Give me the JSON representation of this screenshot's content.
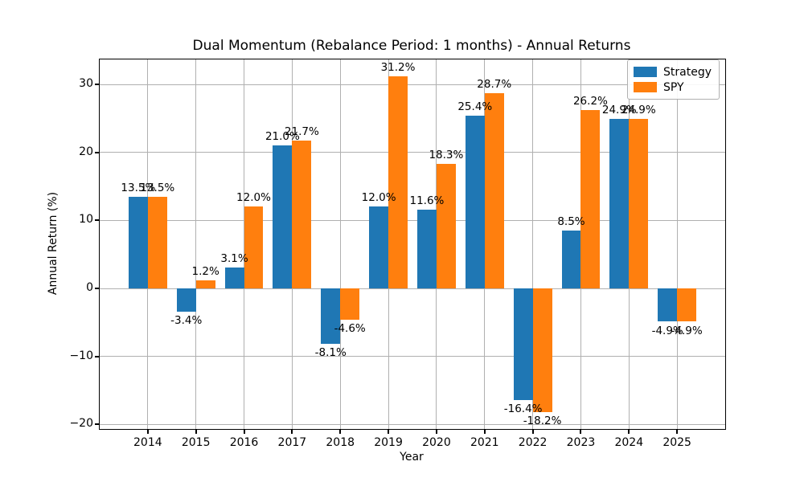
{
  "chart_data": {
    "type": "bar",
    "title": "Dual Momentum (Rebalance Period: 1 months) - Annual Returns",
    "xlabel": "Year",
    "ylabel": "Annual Return (%)",
    "categories": [
      "2014",
      "2015",
      "2016",
      "2017",
      "2018",
      "2019",
      "2020",
      "2021",
      "2022",
      "2023",
      "2024",
      "2025"
    ],
    "series": [
      {
        "name": "Strategy",
        "color": "#1f77b4",
        "values": [
          13.5,
          -3.4,
          3.1,
          21.0,
          -8.1,
          12.0,
          11.6,
          25.4,
          -16.4,
          8.5,
          24.9,
          -4.9
        ]
      },
      {
        "name": "SPY",
        "color": "#ff7f0e",
        "values": [
          13.5,
          1.2,
          12.0,
          21.7,
          -4.6,
          31.2,
          18.3,
          28.7,
          -18.2,
          26.2,
          24.9,
          -4.9
        ]
      }
    ],
    "bar_labels": {
      "Strategy": [
        "13.5%",
        "-3.4%",
        "3.1%",
        "21.0%",
        "-8.1%",
        "12.0%",
        "11.6%",
        "25.4%",
        "-16.4%",
        "8.5%",
        "24.9%",
        "-4.9%"
      ],
      "SPY": [
        "13.5%",
        "1.2%",
        "12.0%",
        "21.7%",
        "-4.6%",
        "31.2%",
        "18.3%",
        "28.7%",
        "-18.2%",
        "26.2%",
        "24.9%",
        "-4.9%"
      ]
    },
    "yticks": [
      -20,
      -10,
      0,
      10,
      20,
      30
    ],
    "ytick_labels": [
      "−20",
      "−10",
      "0",
      "10",
      "20",
      "30"
    ],
    "ylim": [
      -20.67,
      33.67
    ],
    "xlim": [
      -1,
      12
    ],
    "bar_width": 0.4,
    "grid": true,
    "grid_color": "#b0b0b0",
    "legend_position": "upper right",
    "legend_entries": [
      "Strategy",
      "SPY"
    ]
  }
}
